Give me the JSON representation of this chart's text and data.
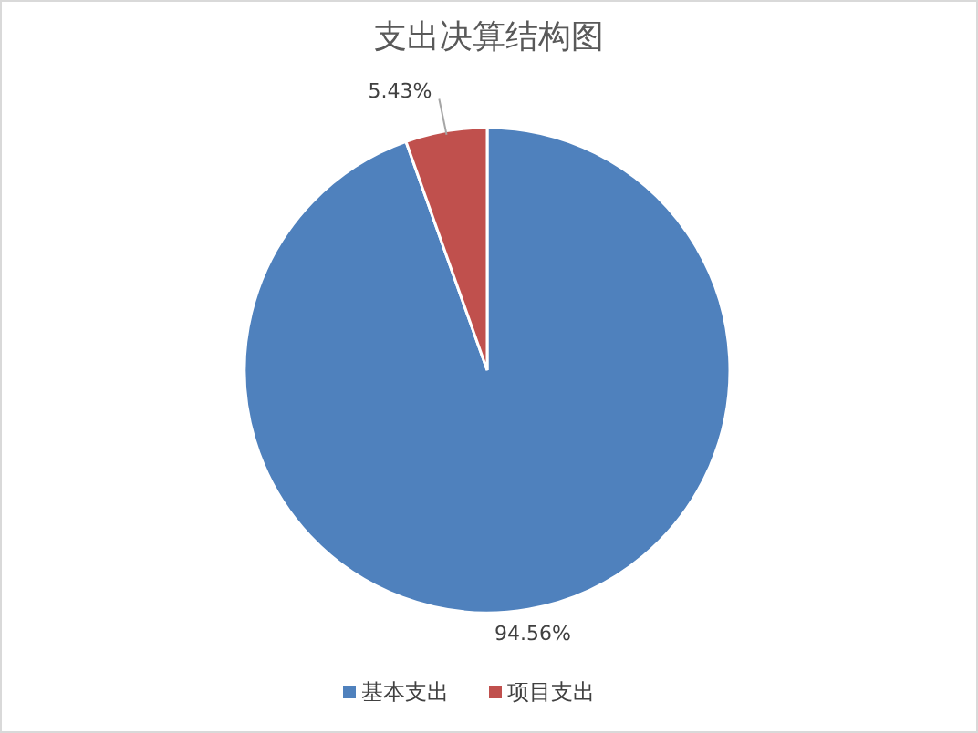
{
  "chart_data": {
    "type": "pie",
    "title": "支出决算结构图",
    "categories": [
      "基本支出",
      "项目支出"
    ],
    "values": [
      94.56,
      5.43
    ],
    "colors": [
      "#4f81bd",
      "#c0504d"
    ],
    "value_labels": [
      "94.56%",
      "5.43%"
    ],
    "legend": "bottom"
  }
}
